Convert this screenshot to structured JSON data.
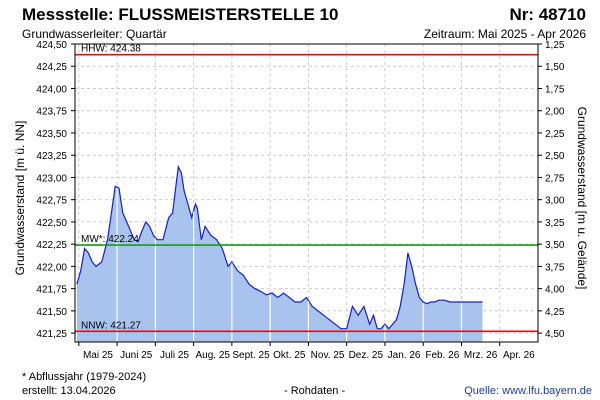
{
  "header": {
    "station_label": "Messstelle: FLUSSMEISTERSTELLE 10",
    "station_number": "Nr: 48710",
    "aquifer": "Grundwasserleiter: Quartär",
    "period": "Zeitraum: Mai 2025 - Apr 2026"
  },
  "footer": {
    "note": "* Abflussjahr (1979-2024)",
    "created": "erstellt:  13.04.2026",
    "data_status": "- Rohdaten -",
    "source": "Quelle: www.lfu.bayern.de"
  },
  "colors": {
    "fill": "#a8c4ee",
    "line": "#1a1adc",
    "hhw": "#e01010",
    "mw": "#1a9a1a",
    "nnw": "#e01010",
    "grid": "#cccccc"
  },
  "chart_data": {
    "type": "area",
    "title": "",
    "ylabel": "Grundwasserstand [m ü. NN]",
    "ylabel_right": "Grundwasserstand [m u. Gelände]",
    "ylim": [
      421.15,
      424.5
    ],
    "yticks_left": [
      "421,25",
      "421,50",
      "421,75",
      "422,00",
      "422,25",
      "422,50",
      "422,75",
      "423,00",
      "423,25",
      "423,50",
      "423,75",
      "424,00",
      "424,25",
      "424,50"
    ],
    "yticks_right": [
      "4,50",
      "4,25",
      "4,00",
      "3,75",
      "3,50",
      "3,25",
      "3,00",
      "2,75",
      "2,50",
      "2,25",
      "2,00",
      "1,75",
      "1,50",
      "1,25"
    ],
    "xticks": [
      "Mai 25",
      "Juni 25",
      "Juli 25",
      "Aug. 25",
      "Sept. 25",
      "Okt. 25",
      "Nov. 25",
      "Dez. 25",
      "Jan. 26",
      "Feb. 26",
      "Mrz. 26",
      "Apr. 26"
    ],
    "x_unit": "month index (0 = Mai 25)",
    "xlim": [
      -0.1,
      12.0
    ],
    "reference_lines": [
      {
        "label": "HHW: 424.38",
        "value": 424.38
      },
      {
        "label": "MW*: 422.24",
        "value": 422.24
      },
      {
        "label": "NNW: 421.27",
        "value": 421.27
      }
    ],
    "series": [
      {
        "x": [
          -0.05,
          0.05,
          0.15,
          0.25,
          0.35,
          0.45,
          0.6,
          0.75,
          0.85,
          0.95,
          1.05,
          1.15,
          1.25,
          1.35,
          1.45,
          1.55,
          1.65,
          1.75,
          1.85,
          1.95,
          2.05,
          2.2,
          2.35,
          2.45,
          2.55,
          2.6,
          2.68,
          2.75,
          2.85,
          2.95,
          3.05,
          3.1,
          3.2,
          3.3,
          3.45,
          3.6,
          3.75,
          3.9,
          4.0,
          4.15,
          4.3,
          4.45,
          4.6,
          4.75,
          4.9,
          5.05,
          5.2,
          5.35,
          5.5,
          5.65,
          5.8,
          5.95,
          6.1,
          6.25,
          6.4,
          6.55,
          6.7,
          6.85,
          7.0,
          7.15,
          7.3,
          7.45,
          7.6,
          7.7,
          7.8,
          7.9,
          8.0,
          8.1,
          8.2,
          8.3,
          8.4,
          8.5,
          8.6,
          8.7,
          8.8,
          8.9,
          9.0,
          9.1,
          9.2,
          9.3,
          9.4,
          9.55,
          9.7,
          9.8,
          9.9,
          10.0,
          10.05,
          10.15,
          10.3,
          10.45,
          10.55
        ],
        "y": [
          421.8,
          421.95,
          422.2,
          422.15,
          422.05,
          422.0,
          422.05,
          422.3,
          422.6,
          422.9,
          422.88,
          422.6,
          422.5,
          422.4,
          422.3,
          422.28,
          422.4,
          422.5,
          422.45,
          422.35,
          422.3,
          422.3,
          422.55,
          422.6,
          422.95,
          423.12,
          423.05,
          422.85,
          422.7,
          422.55,
          422.7,
          422.65,
          422.3,
          422.45,
          422.35,
          422.3,
          422.2,
          422.0,
          422.05,
          421.95,
          421.9,
          421.8,
          421.75,
          421.72,
          421.68,
          421.7,
          421.65,
          421.7,
          421.65,
          421.6,
          421.6,
          421.65,
          421.55,
          421.5,
          421.45,
          421.4,
          421.35,
          421.3,
          421.3,
          421.55,
          421.45,
          421.55,
          421.35,
          421.45,
          421.3,
          421.3,
          421.35,
          421.3,
          421.35,
          421.4,
          421.55,
          421.8,
          422.15,
          422.0,
          421.8,
          421.65,
          421.6,
          421.58,
          421.6,
          421.6,
          421.62,
          421.62,
          421.6,
          421.6,
          421.6,
          421.6,
          421.6,
          421.6,
          421.6,
          421.6,
          421.6
        ]
      }
    ]
  }
}
